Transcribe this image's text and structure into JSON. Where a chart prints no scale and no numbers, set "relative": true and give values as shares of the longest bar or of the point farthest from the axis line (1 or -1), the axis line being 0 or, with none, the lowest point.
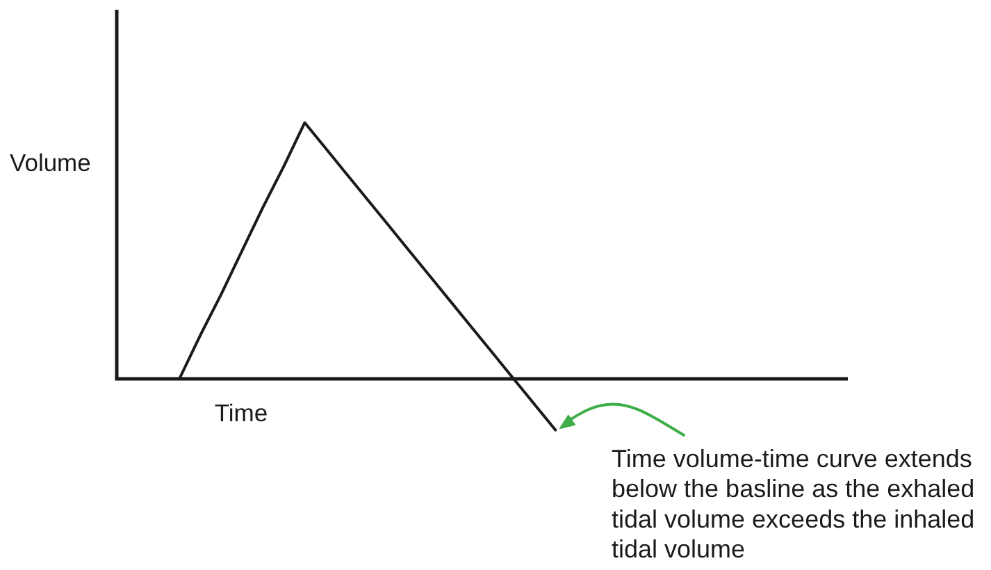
{
  "chart_data": {
    "type": "line",
    "xlabel": "Time",
    "ylabel": "Volume",
    "annotations": [
      "Time volume-time curve extends below the basline as the exhaled tidal volume exceeds the inhaled tidal volume"
    ],
    "categories": [
      null,
      null,
      null,
      null,
      null,
      null,
      null,
      null,
      null,
      null,
      null,
      null,
      null,
      null,
      null,
      null,
      null,
      null,
      null,
      null,
      null,
      null,
      null,
      null,
      null,
      null,
      null,
      null,
      null,
      null,
      null,
      null,
      null,
      null,
      null,
      null
    ],
    "values": [
      null,
      null,
      null,
      0,
      0.17,
      0.33,
      0.5,
      0.67,
      0.83,
      1,
      0.9,
      0.8,
      0.7,
      0.6,
      0.5,
      0.4,
      0.3,
      0.2,
      0.1,
      0,
      -0.1,
      -0.2,
      null,
      null,
      null,
      null,
      null,
      null,
      null,
      null,
      null,
      null,
      null,
      null,
      null,
      null
    ],
    "color": "#1a1a1a",
    "relative": true,
    "marker": "none",
    "line_style": "solid",
    "grid": false,
    "legend": false,
    "tick_labels": false
  }
}
